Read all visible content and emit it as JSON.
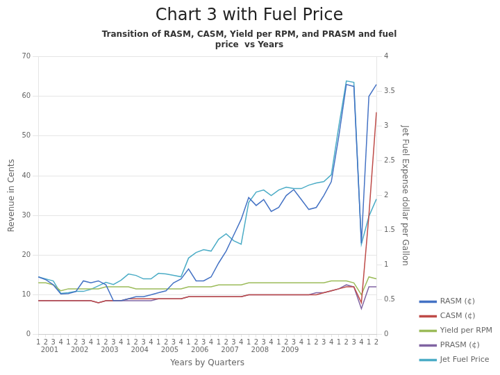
{
  "chart_data": {
    "type": "line",
    "title": "Chart 3 with Fuel Price",
    "subtitle": [
      "Transition of RASM, CASM, Yield per RPM, and PRASM and fuel",
      "price  vs Years"
    ],
    "x_label": "Years by Quarters",
    "y_label": "Revenue in Cents",
    "y2_label": "Jet Fuel Expense dollar per Gallon",
    "categories": [
      "1",
      "2",
      "3",
      "4",
      "1",
      "2",
      "3",
      "4",
      "1",
      "2",
      "3",
      "4",
      "1",
      "2",
      "3",
      "4",
      "1",
      "2",
      "3",
      "4",
      "1",
      "2",
      "3",
      "4",
      "1",
      "2",
      "3",
      "4",
      "1",
      "2",
      "3",
      "4",
      "1",
      "2",
      "3",
      "4",
      "1",
      "2",
      "3",
      "4",
      "1",
      "2",
      "3",
      "4",
      "1",
      "2"
    ],
    "category_groups": [
      {
        "label": "2001",
        "count": 4
      },
      {
        "label": "2002",
        "count": 4
      },
      {
        "label": "2003",
        "count": 4
      },
      {
        "label": "2004",
        "count": 4
      },
      {
        "label": "2005",
        "count": 4
      },
      {
        "label": "2006",
        "count": 4
      },
      {
        "label": "2007",
        "count": 4
      },
      {
        "label": "2008",
        "count": 4
      },
      {
        "label": "2009",
        "count": 4
      }
    ],
    "ylim": [
      0,
      70
    ],
    "yticks": [
      0,
      10,
      20,
      30,
      40,
      50,
      60,
      70
    ],
    "y2lim": [
      0,
      4
    ],
    "y2ticks": [
      0,
      0.5,
      1,
      1.5,
      2,
      2.5,
      3,
      3.5,
      4
    ],
    "grid": true,
    "legend": "lower right",
    "series": [
      {
        "name": "RASM (¢)",
        "color": "#4472C4",
        "values": [
          14.5,
          13.8,
          12.5,
          10.2,
          10.3,
          10.8,
          13.5,
          13.0,
          13.5,
          12.5,
          8.5,
          8.5,
          9.0,
          9.5,
          9.5,
          10.0,
          10.5,
          11.0,
          13.0,
          14.0,
          16.5,
          13.5,
          13.5,
          14.5,
          18.0,
          21.0,
          25.0,
          29.0,
          34.5,
          32.5,
          34.0,
          31.0,
          32.0,
          35.0,
          36.5,
          34.0,
          31.5,
          32.0,
          35.0,
          38.5,
          50.0,
          63.0,
          62.5,
          23.0,
          60.0,
          63.0
        ]
      },
      {
        "name": "CASM (¢)",
        "color": "#BE4B48",
        "values": [
          8.5,
          8.5,
          8.5,
          8.5,
          8.5,
          8.5,
          8.5,
          8.5,
          8.0,
          8.5,
          8.5,
          8.5,
          9.0,
          9.0,
          9.0,
          9.0,
          9.0,
          9.0,
          9.0,
          9.0,
          9.5,
          9.5,
          9.5,
          9.5,
          9.5,
          9.5,
          9.5,
          9.5,
          10.0,
          10.0,
          10.0,
          10.0,
          10.0,
          10.0,
          10.0,
          10.0,
          10.0,
          10.0,
          10.5,
          11.0,
          11.5,
          12.0,
          12.0,
          8.0,
          30.0,
          56.0
        ]
      },
      {
        "name": "Yield per RPM (¢)",
        "color": "#9BBB59",
        "values": [
          13.0,
          13.0,
          12.5,
          11.0,
          11.5,
          11.5,
          11.5,
          11.5,
          11.5,
          12.0,
          12.0,
          12.0,
          12.0,
          11.5,
          11.5,
          11.5,
          11.5,
          11.5,
          11.5,
          11.5,
          12.0,
          12.0,
          12.0,
          12.0,
          12.5,
          12.5,
          12.5,
          12.5,
          13.0,
          13.0,
          13.0,
          13.0,
          13.0,
          13.0,
          13.0,
          13.0,
          13.0,
          13.0,
          13.0,
          13.5,
          13.5,
          13.5,
          13.0,
          10.0,
          14.5,
          14.0
        ]
      },
      {
        "name": "PRASM (¢)",
        "color": "#8064A2",
        "values": [
          8.5,
          8.5,
          8.5,
          8.5,
          8.5,
          8.5,
          8.5,
          8.5,
          8.0,
          8.5,
          8.5,
          8.5,
          8.5,
          8.5,
          8.5,
          8.5,
          9.0,
          9.0,
          9.0,
          9.0,
          9.5,
          9.5,
          9.5,
          9.5,
          9.5,
          9.5,
          9.5,
          9.5,
          10.0,
          10.0,
          10.0,
          10.0,
          10.0,
          10.0,
          10.0,
          10.0,
          10.0,
          10.5,
          10.5,
          11.0,
          11.5,
          12.5,
          12.0,
          6.5,
          12.0,
          12.0
        ]
      },
      {
        "name": "Jet Fuel Price",
        "color": "#4BACC6",
        "axis": "y2",
        "values": [
          0.83,
          0.8,
          0.77,
          0.59,
          0.6,
          0.62,
          0.62,
          0.65,
          0.7,
          0.75,
          0.72,
          0.78,
          0.87,
          0.85,
          0.8,
          0.8,
          0.88,
          0.87,
          0.85,
          0.83,
          1.1,
          1.18,
          1.22,
          1.2,
          1.37,
          1.45,
          1.35,
          1.3,
          1.9,
          2.05,
          2.08,
          2.0,
          2.08,
          2.12,
          2.1,
          2.1,
          2.15,
          2.18,
          2.2,
          2.3,
          3.0,
          3.65,
          3.63,
          1.3,
          1.7,
          1.95
        ]
      }
    ]
  }
}
